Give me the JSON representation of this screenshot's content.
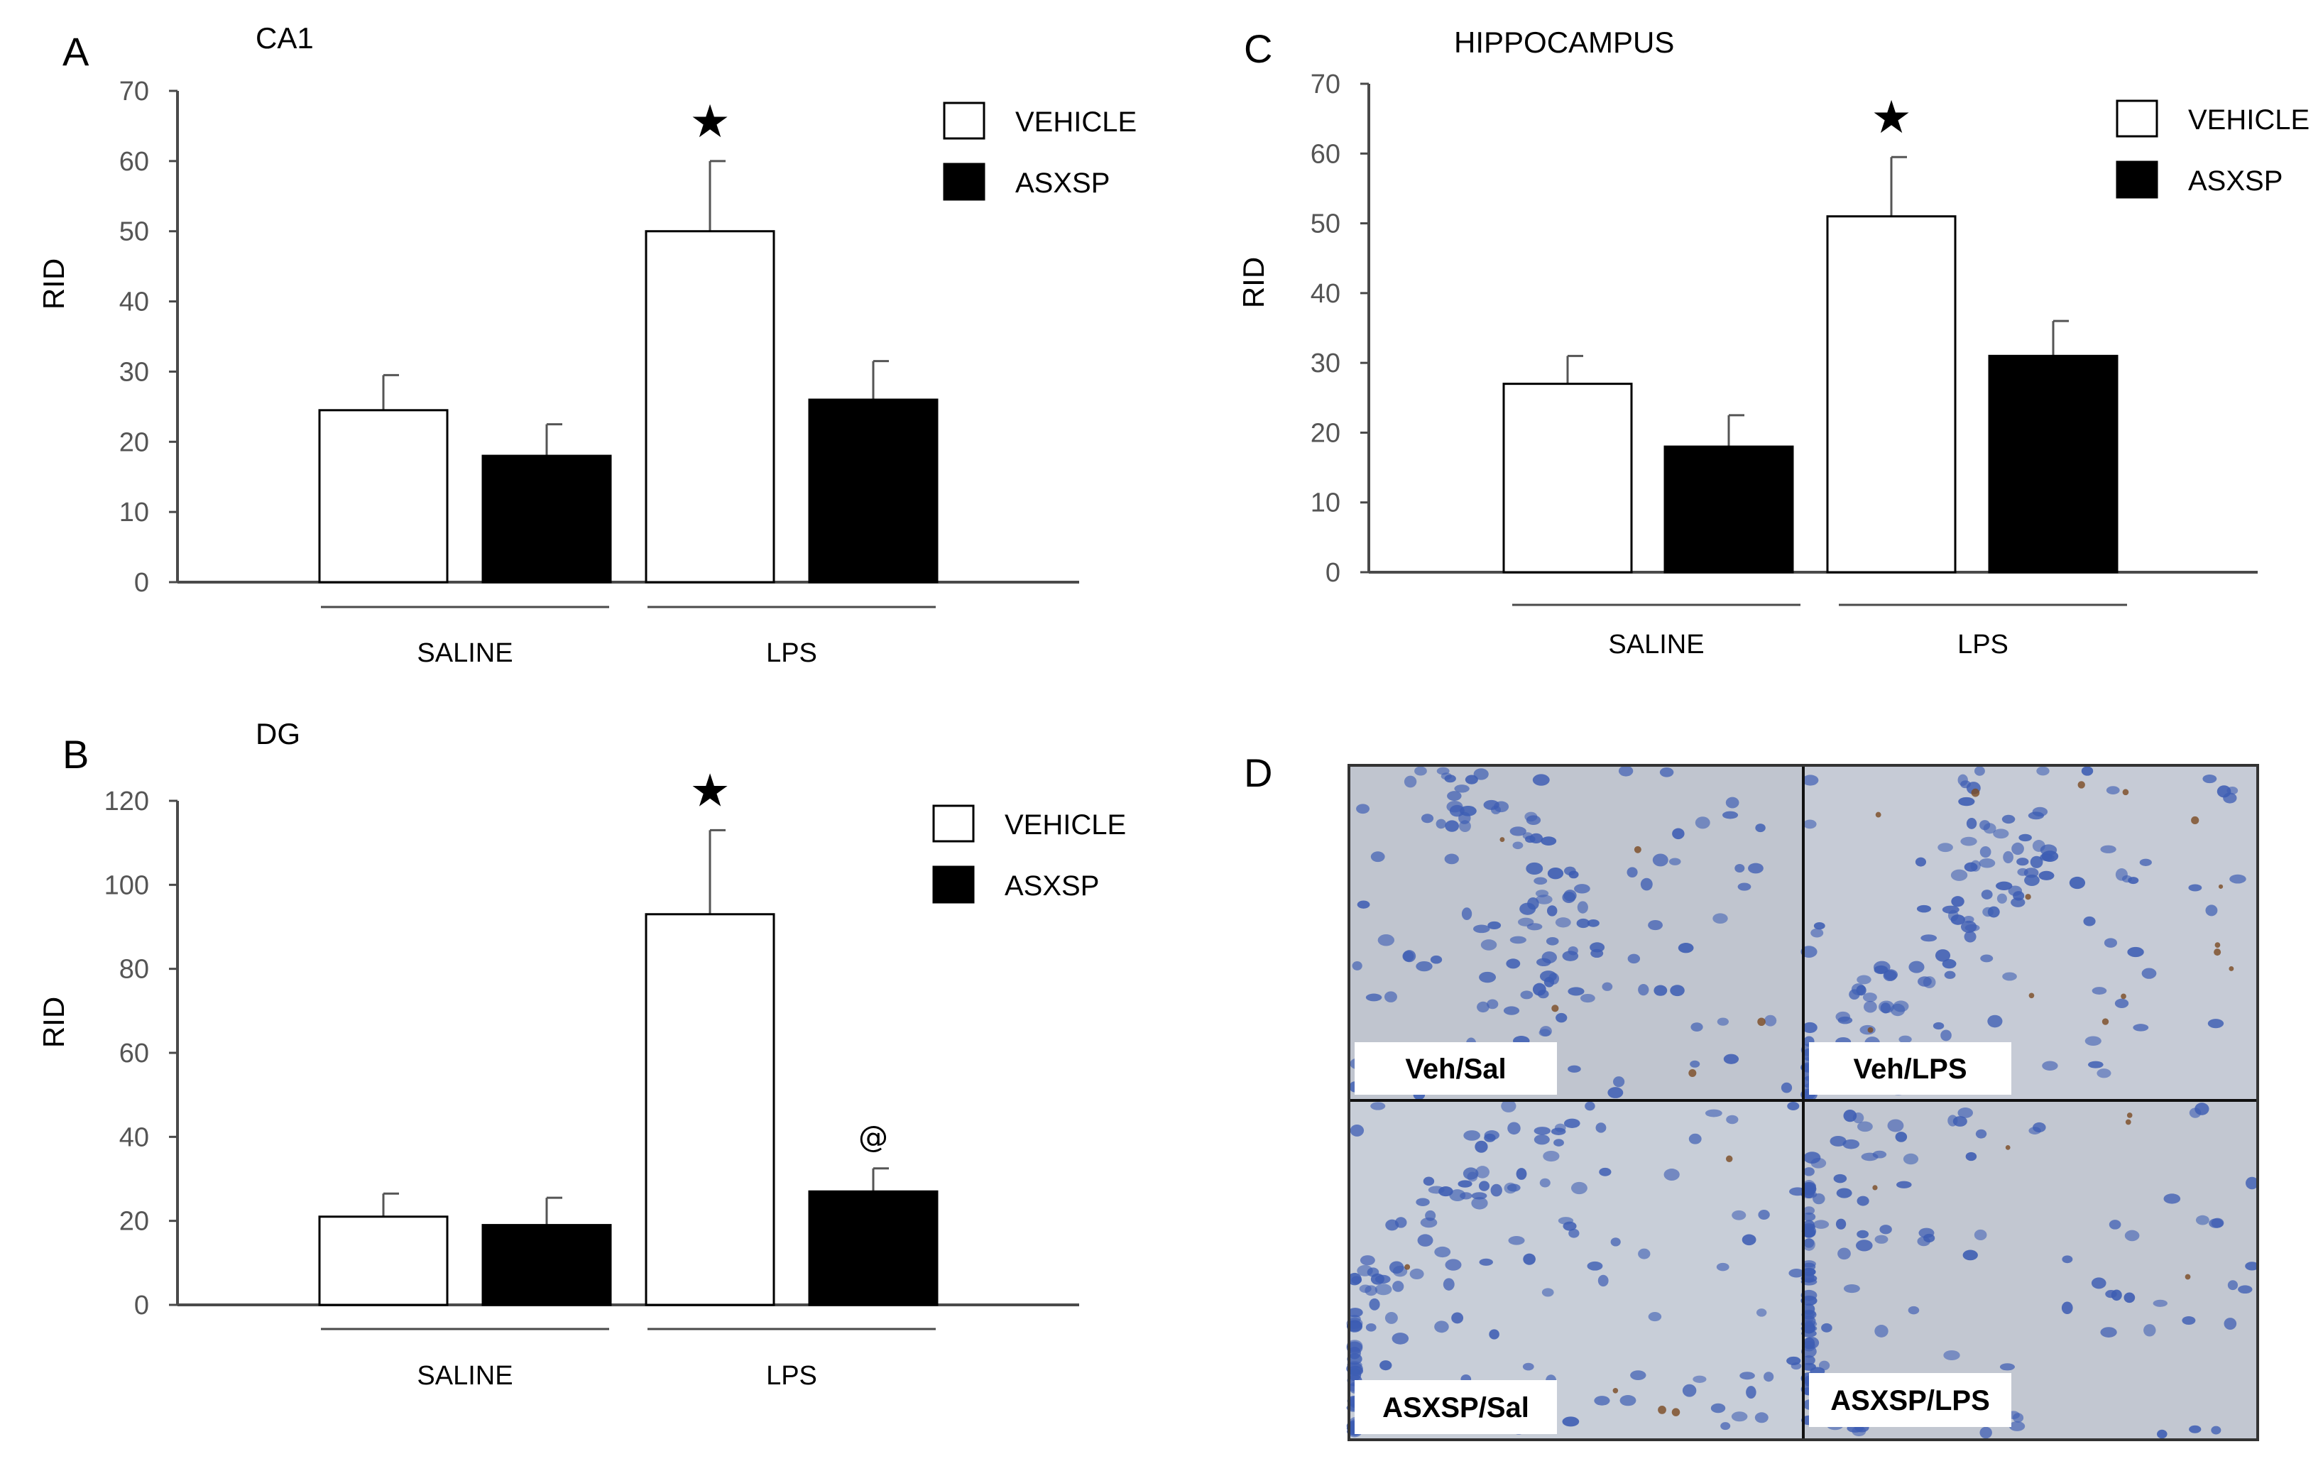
{
  "colors": {
    "vehicle": "#ffffff",
    "asxsp": "#000000",
    "axis": "#4a4a4a",
    "tissue_bg": "#c3c8d3",
    "nucleus": "#3d5db3",
    "dab": "#7a4a22"
  },
  "chart_data": [
    {
      "panel": "A",
      "type": "bar",
      "title": "CA1",
      "ylabel": "RID",
      "ylim": [
        0,
        70
      ],
      "yticks": [
        0,
        10,
        20,
        30,
        40,
        50,
        60,
        70
      ],
      "groups": [
        "SALINE",
        "LPS"
      ],
      "series": [
        {
          "name": "VEHICLE",
          "values": [
            24.5,
            50
          ],
          "errors": [
            5,
            10
          ]
        },
        {
          "name": "ASXSP",
          "values": [
            18,
            26
          ],
          "errors": [
            4.5,
            5.5
          ]
        }
      ],
      "annotations": [
        {
          "group": "LPS",
          "series": "VEHICLE",
          "symbol": "★"
        }
      ],
      "legend": "top-right"
    },
    {
      "panel": "B",
      "type": "bar",
      "title": "DG",
      "ylabel": "RID",
      "ylim": [
        0,
        120
      ],
      "yticks": [
        0,
        20,
        40,
        60,
        80,
        100,
        120
      ],
      "groups": [
        "SALINE",
        "LPS"
      ],
      "series": [
        {
          "name": "VEHICLE",
          "values": [
            21,
            93
          ],
          "errors": [
            5.5,
            20
          ]
        },
        {
          "name": "ASXSP",
          "values": [
            19,
            27
          ],
          "errors": [
            6.5,
            5.5
          ]
        }
      ],
      "annotations": [
        {
          "group": "LPS",
          "series": "VEHICLE",
          "symbol": "★"
        },
        {
          "group": "LPS",
          "series": "ASXSP",
          "symbol": "@"
        }
      ],
      "legend": "top-right"
    },
    {
      "panel": "C",
      "type": "bar",
      "title": "HIPPOCAMPUS",
      "ylabel": "RID",
      "ylim": [
        0,
        70
      ],
      "yticks": [
        0,
        10,
        20,
        30,
        40,
        50,
        60,
        70
      ],
      "groups": [
        "SALINE",
        "LPS"
      ],
      "series": [
        {
          "name": "VEHICLE",
          "values": [
            27,
            51
          ],
          "errors": [
            4,
            8.5
          ]
        },
        {
          "name": "ASXSP",
          "values": [
            18,
            31
          ],
          "errors": [
            4.5,
            5
          ]
        }
      ],
      "annotations": [
        {
          "group": "LPS",
          "series": "VEHICLE",
          "symbol": "★"
        }
      ],
      "legend": "top-right"
    }
  ],
  "micrograph": {
    "panel": "D",
    "labels": [
      "Veh/Sal",
      "Veh/LPS",
      "ASXSP/Sal",
      "ASXSP/LPS"
    ]
  }
}
